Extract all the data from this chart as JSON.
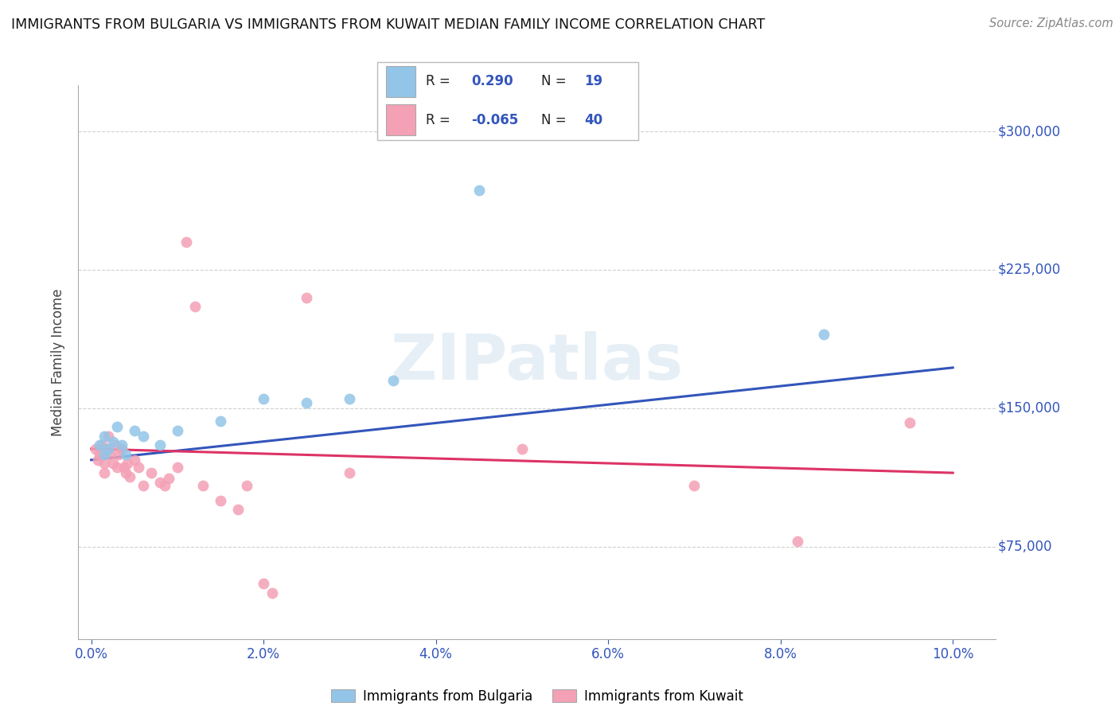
{
  "title": "IMMIGRANTS FROM BULGARIA VS IMMIGRANTS FROM KUWAIT MEDIAN FAMILY INCOME CORRELATION CHART",
  "source": "Source: ZipAtlas.com",
  "ylabel": "Median Family Income",
  "xlabel_ticks": [
    "0.0%",
    "2.0%",
    "4.0%",
    "6.0%",
    "8.0%",
    "10.0%"
  ],
  "xlabel_vals": [
    0.0,
    2.0,
    4.0,
    6.0,
    8.0,
    10.0
  ],
  "ytick_labels": [
    "$75,000",
    "$150,000",
    "$225,000",
    "$300,000"
  ],
  "ytick_vals": [
    75000,
    150000,
    225000,
    300000
  ],
  "ylim": [
    25000,
    325000
  ],
  "xlim": [
    -0.15,
    10.5
  ],
  "legend1_R": "0.290",
  "legend1_N": "19",
  "legend2_R": "-0.065",
  "legend2_N": "40",
  "bulgaria_color": "#92c5e8",
  "kuwait_color": "#f4a0b5",
  "line_bulgaria_color": "#3355bb",
  "line_kuwait_color": "#dd3366",
  "watermark": "ZIPatlas",
  "bulgaria_line": [
    0.0,
    122000,
    10.0,
    172000
  ],
  "kuwait_line": [
    0.0,
    128000,
    10.0,
    115000
  ],
  "bulgaria_points": [
    [
      0.1,
      130000
    ],
    [
      0.15,
      125000
    ],
    [
      0.15,
      135000
    ],
    [
      0.2,
      128000
    ],
    [
      0.25,
      132000
    ],
    [
      0.3,
      140000
    ],
    [
      0.35,
      130000
    ],
    [
      0.4,
      125000
    ],
    [
      0.5,
      138000
    ],
    [
      0.6,
      135000
    ],
    [
      0.8,
      130000
    ],
    [
      1.0,
      138000
    ],
    [
      1.5,
      143000
    ],
    [
      2.0,
      155000
    ],
    [
      2.5,
      153000
    ],
    [
      3.0,
      155000
    ],
    [
      3.5,
      165000
    ],
    [
      4.5,
      268000
    ],
    [
      8.5,
      190000
    ]
  ],
  "kuwait_points": [
    [
      0.05,
      128000
    ],
    [
      0.08,
      122000
    ],
    [
      0.1,
      125000
    ],
    [
      0.12,
      130000
    ],
    [
      0.15,
      120000
    ],
    [
      0.15,
      115000
    ],
    [
      0.18,
      128000
    ],
    [
      0.2,
      135000
    ],
    [
      0.22,
      125000
    ],
    [
      0.25,
      120000
    ],
    [
      0.28,
      130000
    ],
    [
      0.3,
      118000
    ],
    [
      0.32,
      125000
    ],
    [
      0.35,
      128000
    ],
    [
      0.38,
      118000
    ],
    [
      0.4,
      115000
    ],
    [
      0.42,
      120000
    ],
    [
      0.45,
      113000
    ],
    [
      0.5,
      122000
    ],
    [
      0.55,
      118000
    ],
    [
      0.6,
      108000
    ],
    [
      0.7,
      115000
    ],
    [
      0.8,
      110000
    ],
    [
      0.85,
      108000
    ],
    [
      0.9,
      112000
    ],
    [
      1.0,
      118000
    ],
    [
      1.1,
      240000
    ],
    [
      1.2,
      205000
    ],
    [
      1.3,
      108000
    ],
    [
      1.5,
      100000
    ],
    [
      1.7,
      95000
    ],
    [
      1.8,
      108000
    ],
    [
      2.0,
      55000
    ],
    [
      2.1,
      50000
    ],
    [
      2.5,
      210000
    ],
    [
      3.0,
      115000
    ],
    [
      5.0,
      128000
    ],
    [
      7.0,
      108000
    ],
    [
      8.2,
      78000
    ],
    [
      9.5,
      142000
    ]
  ]
}
